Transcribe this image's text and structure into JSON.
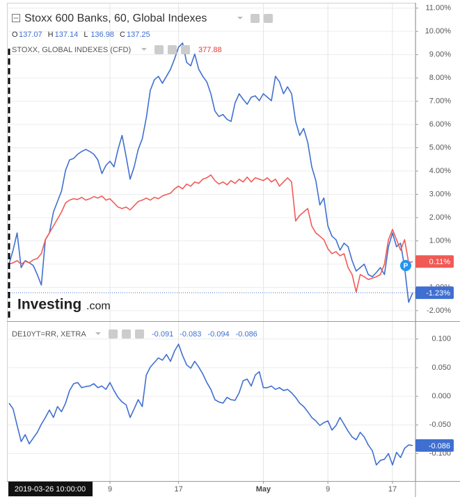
{
  "chart_data": [
    {
      "type": "line",
      "title": "Stoxx 600 Banks, 60, Global Indexes",
      "ohlc": [
        {
          "label": "O",
          "value": 137.07
        },
        {
          "label": "H",
          "value": 137.14
        },
        {
          "label": "L",
          "value": 136.98
        },
        {
          "label": "C",
          "value": 137.25
        }
      ],
      "subtitle": "STOXX, GLOBAL INDEXES (CFD)",
      "subtitle_value": 377.88,
      "watermark": [
        "Investing",
        ".com"
      ],
      "ylim": [
        -2.45,
        11.2
      ],
      "yticks": [
        {
          "value": 11,
          "label": "11.00%"
        },
        {
          "value": 10,
          "label": "10.00%"
        },
        {
          "value": 9,
          "label": "9.00%"
        },
        {
          "value": 8,
          "label": "8.00%"
        },
        {
          "value": 7,
          "label": "7.00%"
        },
        {
          "value": 6,
          "label": "6.00%"
        },
        {
          "value": 5,
          "label": "5.00%"
        },
        {
          "value": 4,
          "label": "4.00%"
        },
        {
          "value": 3,
          "label": "3.00%"
        },
        {
          "value": 2,
          "label": "2.00%"
        },
        {
          "value": 1,
          "label": "1.00%"
        },
        {
          "value": 0,
          "label": "0.00%"
        },
        {
          "value": -1,
          "label": "-1.00%"
        },
        {
          "value": -2,
          "label": "-2.00%"
        }
      ],
      "grid": true,
      "series": [
        {
          "name": "Stoxx 600 Banks",
          "color": "#3f6fd0",
          "last_label": "-1.23%",
          "values": [
            0.0,
            0.6,
            1.34,
            -0.15,
            0.15,
            0.06,
            -0.06,
            -0.45,
            -0.9,
            1.05,
            1.34,
            2.24,
            2.69,
            3.14,
            4.03,
            4.48,
            4.54,
            4.72,
            4.84,
            4.93,
            4.84,
            4.72,
            4.48,
            3.89,
            4.24,
            4.42,
            4.18,
            4.93,
            5.53,
            4.63,
            3.65,
            4.18,
            4.93,
            5.38,
            6.28,
            7.47,
            7.92,
            8.07,
            7.77,
            8.07,
            8.37,
            8.82,
            9.32,
            9.5,
            8.67,
            8.52,
            9.03,
            8.37,
            8.07,
            7.83,
            7.32,
            6.58,
            6.34,
            6.43,
            6.22,
            6.13,
            6.93,
            7.32,
            7.08,
            6.87,
            7.17,
            7.23,
            7.02,
            7.32,
            7.17,
            7.02,
            8.07,
            7.83,
            7.32,
            7.62,
            7.32,
            6.13,
            5.53,
            5.83,
            5.23,
            4.18,
            3.59,
            2.54,
            2.84,
            1.64,
            1.2,
            1.05,
            0.6,
            0.9,
            0.75,
            0.15,
            -0.3,
            -0.15,
            0.0,
            -0.45,
            -0.54,
            -0.36,
            -0.15,
            -0.45,
            0.75,
            1.34,
            0.75,
            0.9,
            -0.15,
            -1.64,
            -1.23
          ]
        },
        {
          "name": "STOXX, GLOBAL INDEXES (CFD)",
          "color": "#f05a55",
          "last_label": "0.11%",
          "values": [
            0.0,
            0.06,
            0.15,
            0.0,
            0.12,
            0.06,
            0.18,
            0.24,
            0.45,
            1.05,
            1.34,
            1.64,
            1.94,
            2.24,
            2.63,
            2.75,
            2.81,
            2.78,
            2.87,
            2.75,
            2.81,
            2.9,
            2.84,
            2.93,
            2.75,
            2.81,
            2.63,
            2.45,
            2.39,
            2.45,
            2.33,
            2.51,
            2.69,
            2.75,
            2.84,
            2.75,
            2.87,
            2.81,
            2.93,
            2.99,
            3.05,
            3.23,
            3.35,
            3.23,
            3.44,
            3.35,
            3.53,
            3.47,
            3.65,
            3.71,
            3.83,
            3.59,
            3.44,
            3.53,
            3.41,
            3.59,
            3.47,
            3.65,
            3.53,
            3.74,
            3.53,
            3.71,
            3.65,
            3.59,
            3.71,
            3.53,
            3.65,
            3.35,
            3.53,
            3.71,
            3.53,
            1.85,
            2.09,
            2.24,
            2.39,
            1.64,
            1.34,
            1.2,
            1.05,
            0.66,
            0.45,
            0.54,
            0.36,
            0.45,
            -0.15,
            -0.45,
            -1.2,
            -0.45,
            -0.54,
            -0.66,
            -0.6,
            -0.54,
            -0.45,
            0.0,
            1.05,
            1.49,
            1.05,
            0.6,
            1.05,
            0.06,
            0.11
          ]
        }
      ]
    },
    {
      "type": "line",
      "title": "DE10YT=RR, XETRA",
      "header_values": [
        -0.091,
        -0.083,
        -0.094,
        -0.086
      ],
      "ylim": [
        -0.148,
        0.13
      ],
      "yticks": [
        {
          "value": 0.1,
          "label": "0.100"
        },
        {
          "value": 0.05,
          "label": "0.050"
        },
        {
          "value": 0,
          "label": "0.000"
        },
        {
          "value": -0.05,
          "label": "-0.050"
        },
        {
          "value": -0.1,
          "label": "-0.100"
        }
      ],
      "grid": true,
      "categories": [
        "2019-03-26 10:00:00",
        null,
        null,
        null,
        null,
        null,
        null,
        null,
        null,
        null,
        null,
        null,
        null,
        null,
        null,
        null,
        null,
        null,
        null,
        null,
        null,
        null,
        null,
        null,
        null,
        "9",
        null,
        null,
        null,
        null,
        null,
        null,
        null,
        null,
        null,
        null,
        null,
        null,
        null,
        null,
        null,
        null,
        "17",
        null,
        null,
        null,
        null,
        null,
        null,
        null,
        null,
        null,
        null,
        null,
        null,
        null,
        null,
        null,
        null,
        null,
        null,
        null,
        null,
        "May",
        null,
        null,
        null,
        null,
        null,
        null,
        null,
        null,
        null,
        null,
        null,
        null,
        null,
        null,
        null,
        "9",
        null,
        null,
        null,
        null,
        null,
        null,
        null,
        null,
        null,
        null,
        null,
        null,
        null,
        null,
        null,
        "17",
        null,
        null,
        null,
        null,
        null
      ],
      "series": [
        {
          "name": "DE10YT=RR, XETRA",
          "color": "#3f6fd0",
          "last_label": "-0.086",
          "values": [
            -0.012,
            -0.022,
            -0.051,
            -0.079,
            -0.067,
            -0.083,
            -0.073,
            -0.063,
            -0.049,
            -0.037,
            -0.024,
            -0.037,
            -0.018,
            -0.027,
            -0.012,
            0.01,
            0.022,
            0.024,
            0.015,
            0.017,
            0.018,
            0.022,
            0.015,
            0.018,
            0.012,
            0.024,
            0.01,
            -0.002,
            -0.01,
            -0.015,
            -0.037,
            -0.022,
            -0.006,
            -0.018,
            0.037,
            0.051,
            0.059,
            0.067,
            0.063,
            0.073,
            0.061,
            0.079,
            0.091,
            0.071,
            0.055,
            0.049,
            0.061,
            0.051,
            0.039,
            0.024,
            0.012,
            -0.006,
            -0.01,
            -0.012,
            -0.002,
            -0.006,
            -0.007,
            0.006,
            0.027,
            0.03,
            0.018,
            0.037,
            0.043,
            0.015,
            0.015,
            0.018,
            0.012,
            0.015,
            0.01,
            0.012,
            0.006,
            -0.002,
            -0.012,
            -0.018,
            -0.027,
            -0.037,
            -0.043,
            -0.051,
            -0.046,
            -0.043,
            -0.059,
            -0.051,
            -0.037,
            -0.049,
            -0.061,
            -0.071,
            -0.076,
            -0.063,
            -0.071,
            -0.085,
            -0.095,
            -0.12,
            -0.112,
            -0.11,
            -0.1,
            -0.12,
            -0.098,
            -0.107,
            -0.091,
            -0.085,
            -0.086
          ]
        }
      ]
    }
  ]
}
